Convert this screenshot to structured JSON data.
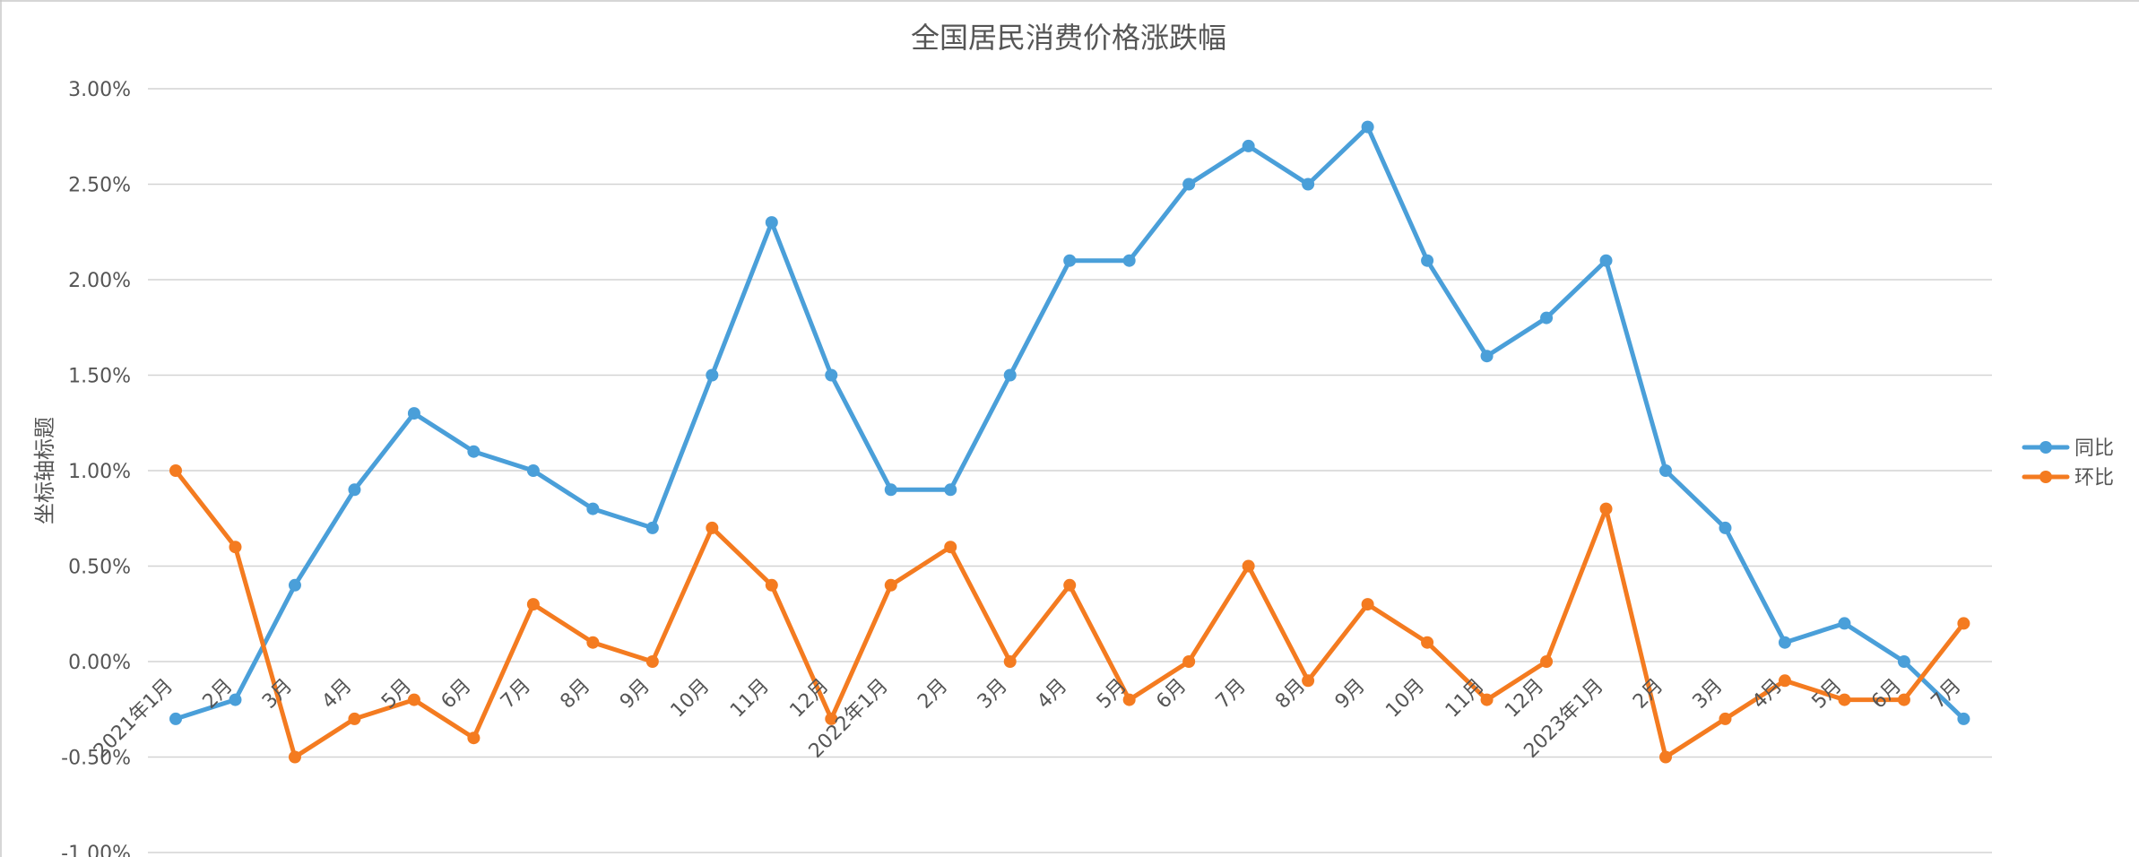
{
  "chart_data": {
    "type": "line",
    "title": "全国居民消费价格涨跌幅",
    "xlabel": "",
    "ylabel": "坐标轴标题",
    "y_tick_labels": [
      "3.00%",
      "2.50%",
      "2.00%",
      "1.50%",
      "1.00%",
      "0.50%",
      "0.00%",
      "-0.50%",
      "-1.00%"
    ],
    "ylim": [
      -1.0,
      3.0
    ],
    "y_unit": "%",
    "grid": true,
    "legend_position": "right",
    "categories": [
      "2021年1月",
      "2月",
      "3月",
      "4月",
      "5月",
      "6月",
      "7月",
      "8月",
      "9月",
      "10月",
      "11月",
      "12月",
      "2022年1月",
      "2月",
      "3月",
      "4月",
      "5月",
      "6月",
      "7月",
      "8月",
      "9月",
      "10月",
      "11月",
      "12月",
      "2023年1月",
      "2月",
      "3月",
      "4月",
      "5月",
      "6月",
      "7月"
    ],
    "series": [
      {
        "name": "同比",
        "color": "#4a9fd9",
        "values": [
          -0.3,
          -0.2,
          0.4,
          0.9,
          1.3,
          1.1,
          1.0,
          0.8,
          0.7,
          1.5,
          2.3,
          1.5,
          0.9,
          0.9,
          1.5,
          2.1,
          2.1,
          2.5,
          2.7,
          2.5,
          2.8,
          2.1,
          1.6,
          1.8,
          2.1,
          1.0,
          0.7,
          0.1,
          0.2,
          0.0,
          -0.3
        ]
      },
      {
        "name": "环比",
        "color": "#f47b20",
        "values": [
          1.0,
          0.6,
          -0.5,
          -0.3,
          -0.2,
          -0.4,
          0.3,
          0.1,
          0.0,
          0.7,
          0.4,
          -0.3,
          0.4,
          0.6,
          0.0,
          0.4,
          -0.2,
          0.0,
          0.5,
          -0.1,
          0.3,
          0.1,
          -0.2,
          0.0,
          0.8,
          -0.5,
          -0.3,
          -0.1,
          -0.2,
          -0.2,
          0.2
        ]
      }
    ]
  }
}
